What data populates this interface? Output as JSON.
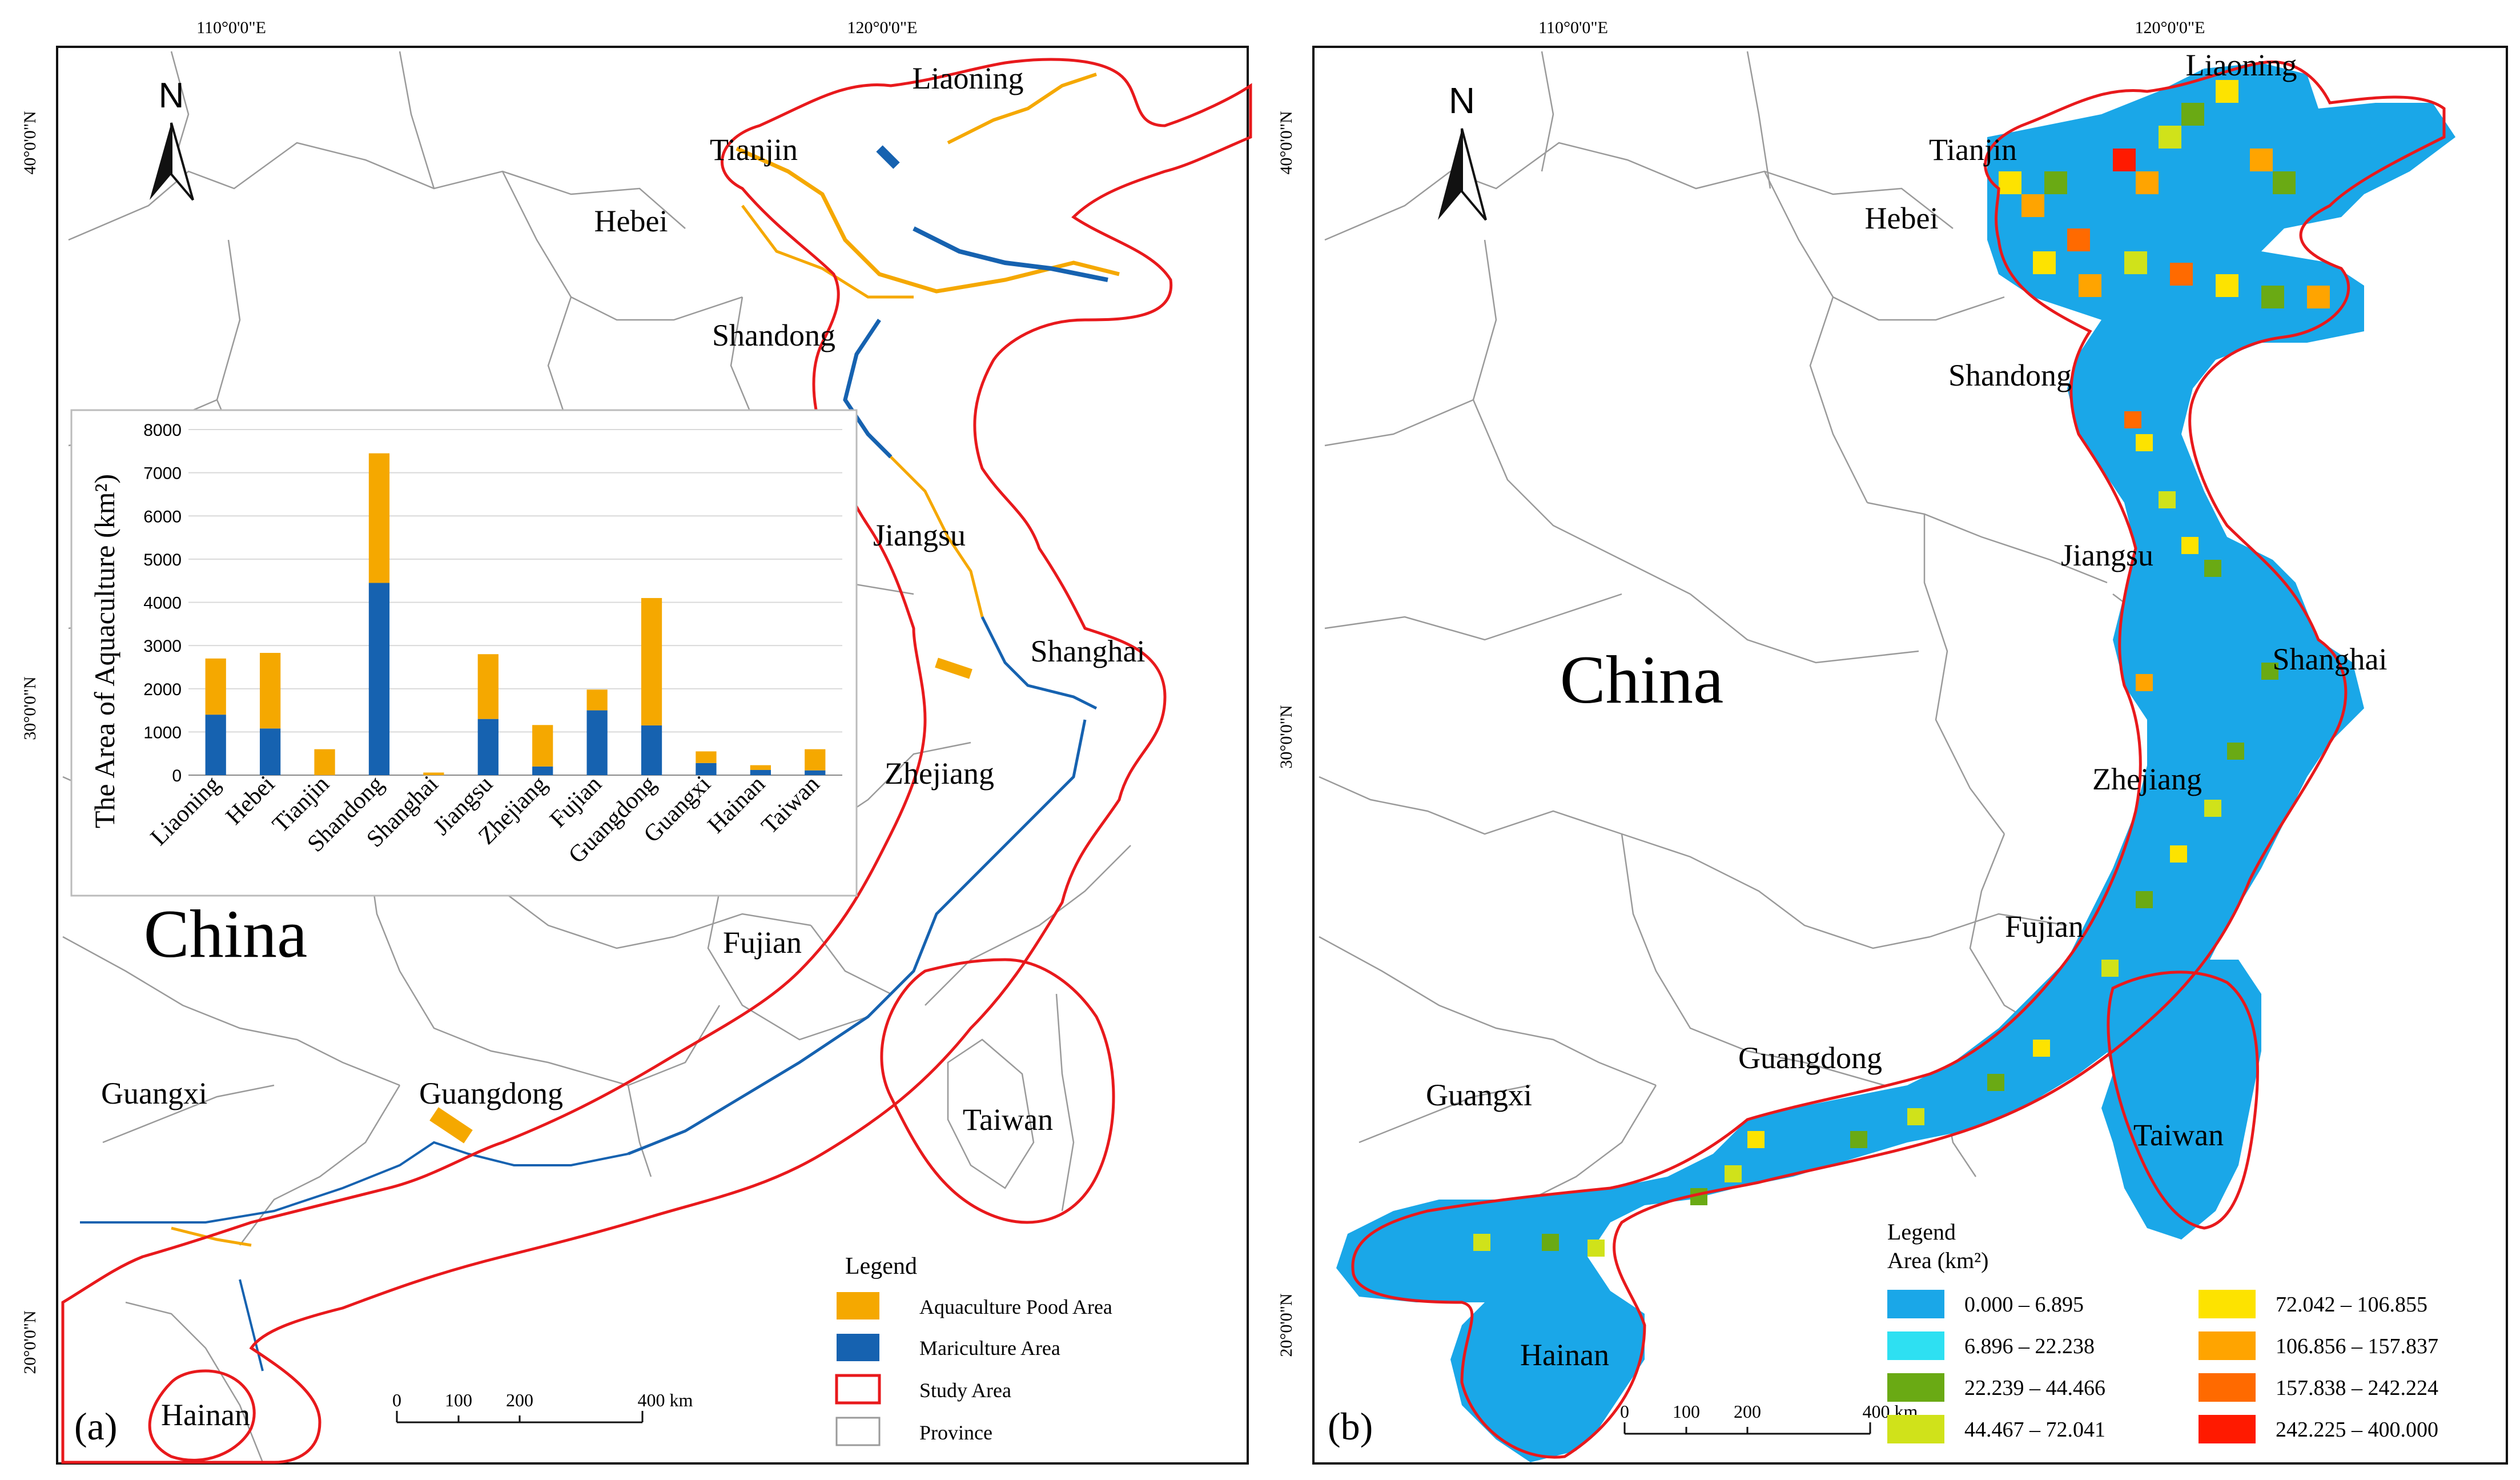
{
  "panel_a": {
    "letter": "(a)",
    "north": "N",
    "china": "China",
    "lon_labels": [
      "110°0'0\"E",
      "120°0'0\"E"
    ],
    "lat_labels": [
      "40°0'0\"N",
      "30°0'0\"N",
      "20°0'0\"N"
    ],
    "provinces": [
      "Liaoning",
      "Tianjin",
      "Hebei",
      "Shandong",
      "Jiangsu",
      "Shanghai",
      "Zhejiang",
      "Fujian",
      "Guangdong",
      "Guangxi",
      "Taiwan",
      "Hainan"
    ],
    "scale": {
      "ticks": [
        "0",
        "100",
        "200"
      ],
      "end": "400 km"
    },
    "legend": {
      "title": "Legend",
      "items": [
        {
          "label": "Aquaculture Pood Area",
          "color": "#f5a800"
        },
        {
          "label": "Mariculture Area",
          "color": "#1662b0"
        },
        {
          "label": "Study Area",
          "color": "#e8191c"
        },
        {
          "label": "Province",
          "color": "#9a9a9a"
        }
      ]
    }
  },
  "panel_b": {
    "letter": "(b)",
    "north": "N",
    "china": "China",
    "lon_labels": [
      "110°0'0\"E",
      "120°0'0\"E"
    ],
    "lat_labels": [
      "40°0'0\"N",
      "30°0'0\"N",
      "20°0'0\"N"
    ],
    "provinces": [
      "Liaoning",
      "Tianjin",
      "Hebei",
      "Shandong",
      "Jiangsu",
      "Shanghai",
      "Zhejiang",
      "Fujian",
      "Guangdong",
      "Guangxi",
      "Taiwan",
      "Hainan"
    ],
    "scale": {
      "ticks": [
        "0",
        "100",
        "200"
      ],
      "end": "400 km"
    },
    "legend": {
      "title": "Legend",
      "subtitle": "Area (km²)",
      "classes": [
        {
          "label": "0.000 – 6.895",
          "color": "#1aa7e8"
        },
        {
          "label": "6.896 – 22.238",
          "color": "#2ee0f2"
        },
        {
          "label": "22.239 – 44.466",
          "color": "#6aaa14"
        },
        {
          "label": "44.467 – 72.041",
          "color": "#d0e21a"
        },
        {
          "label": "72.042 – 106.855",
          "color": "#fde300"
        },
        {
          "label": "106.856 – 157.837",
          "color": "#ffa400"
        },
        {
          "label": "157.838 – 242.224",
          "color": "#ff6a00"
        },
        {
          "label": "242.225 – 400.000",
          "color": "#ff1a00"
        }
      ]
    }
  },
  "chart_data": {
    "type": "bar",
    "stacked": true,
    "ylabel": "The Area of Aquaculture (km²)",
    "ylim": [
      0,
      8000
    ],
    "yticks": [
      0,
      1000,
      2000,
      3000,
      4000,
      5000,
      6000,
      7000,
      8000
    ],
    "grid": true,
    "categories": [
      "Liaoning",
      "Hebei",
      "Tianjin",
      "Shandong",
      "Shanghai",
      "Jiangsu",
      "Zhejiang",
      "Fujian",
      "Guangdong",
      "Guangxi",
      "Hainan",
      "Taiwan"
    ],
    "series": [
      {
        "color": "#1662b0",
        "values": [
          1400,
          1080,
          0,
          4450,
          0,
          1300,
          200,
          1500,
          1150,
          280,
          120,
          110
        ]
      },
      {
        "color": "#f5a800",
        "values": [
          1300,
          1750,
          600,
          3000,
          60,
          1500,
          960,
          480,
          2950,
          270,
          110,
          490
        ]
      }
    ]
  }
}
